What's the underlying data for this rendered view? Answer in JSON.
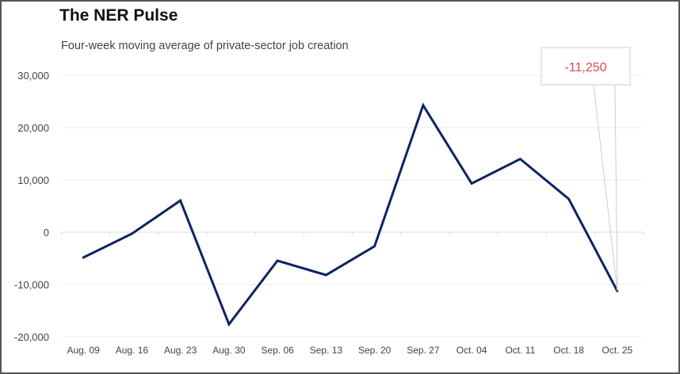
{
  "title": "The NER Pulse",
  "subtitle": "Four-week moving average of private-sector job creation",
  "colors": {
    "line": "#0d2463",
    "grid": "#eeeeee",
    "callout_text": "#e0474c",
    "callout_border": "#cccccc"
  },
  "chart_data": {
    "type": "line",
    "title": "The NER Pulse",
    "subtitle": "Four-week moving average of private-sector job creation",
    "xlabel": "",
    "ylabel": "",
    "categories": [
      "Aug. 09",
      "Aug. 16",
      "Aug. 23",
      "Aug. 30",
      "Sep. 06",
      "Sep. 13",
      "Sep. 20",
      "Sep. 27",
      "Oct. 04",
      "Oct. 11",
      "Oct. 18",
      "Oct. 25"
    ],
    "series": [
      {
        "name": "Four-week moving average",
        "values": [
          -4850,
          -300,
          6050,
          -17600,
          -5450,
          -8200,
          -2700,
          24250,
          9300,
          14000,
          6350,
          -11250
        ]
      }
    ],
    "ylim": [
      -20000,
      30000
    ],
    "yticks": [
      30000,
      20000,
      10000,
      0,
      -10000,
      -20000
    ],
    "ytick_labels": [
      "30,000",
      "20,000",
      "10,000",
      "0",
      "-10,000",
      "-20,000"
    ],
    "grid": true,
    "annotation": {
      "category": "Oct. 25",
      "label": "-11,250"
    }
  }
}
